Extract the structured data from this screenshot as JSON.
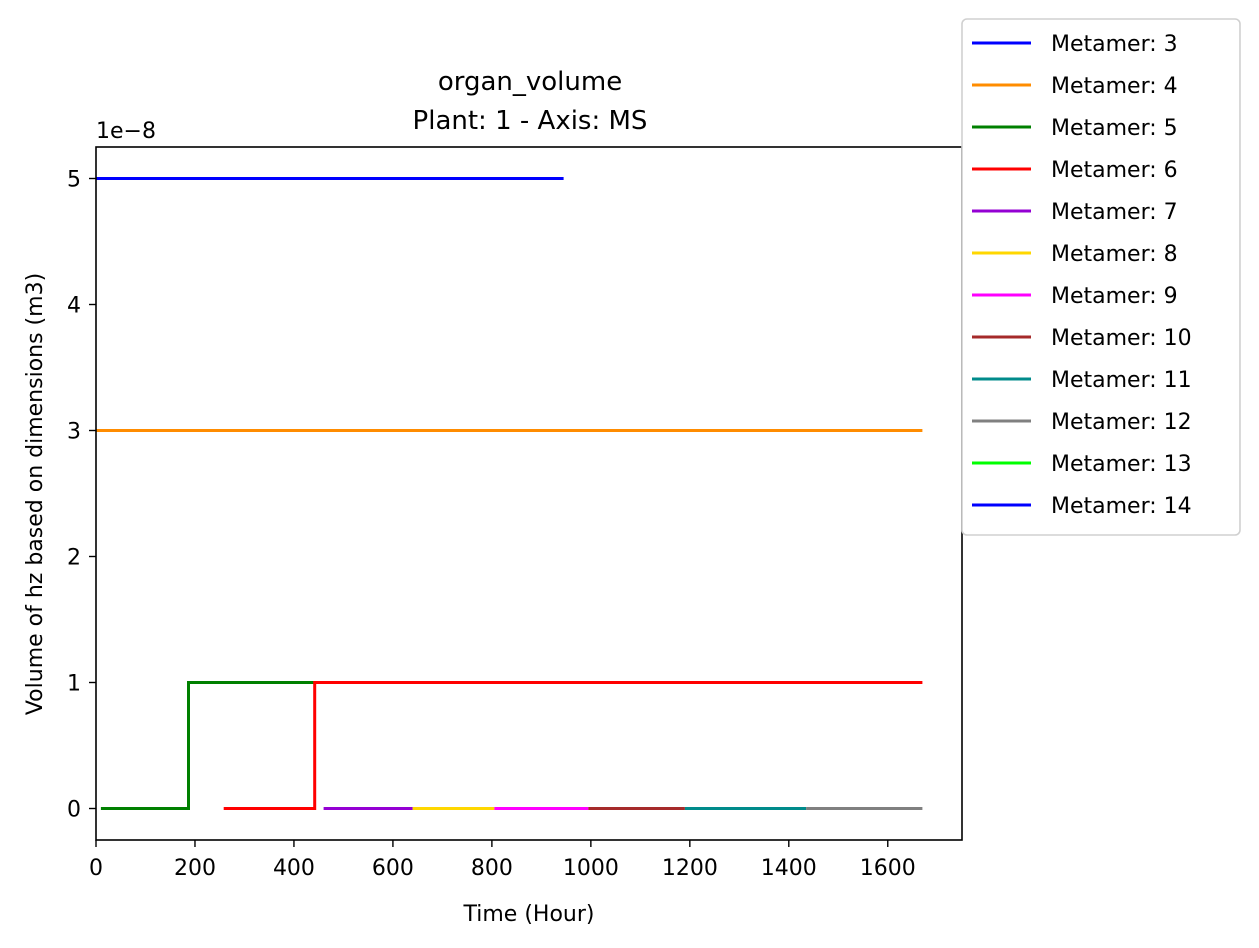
{
  "chart_data": {
    "type": "line",
    "title": "organ_volume",
    "subtitle": "Plant: 1 - Axis: MS",
    "xlabel": "Time (Hour)",
    "ylabel": "Volume of hz based on dimensions (m3)",
    "y_offset_label": "1e−8",
    "xlim": [
      0,
      1750
    ],
    "ylim": [
      -0.25,
      5.25
    ],
    "y_scale_factor": 1e-08,
    "x_ticks": [
      0,
      200,
      400,
      600,
      800,
      1000,
      1200,
      1400,
      1600
    ],
    "y_ticks": [
      0,
      1,
      2,
      3,
      4,
      5
    ],
    "grid": false,
    "legend_position": "outside top-right",
    "series": [
      {
        "name": "Metamer: 3",
        "color": "#0000ff",
        "points": [
          [
            0,
            5
          ],
          [
            945,
            5
          ]
        ]
      },
      {
        "name": "Metamer: 4",
        "color": "#ff8c00",
        "points": [
          [
            0,
            3
          ],
          [
            1670,
            3
          ]
        ]
      },
      {
        "name": "Metamer: 5",
        "color": "#008000",
        "points": [
          [
            10,
            0
          ],
          [
            187,
            0
          ],
          [
            187,
            1
          ],
          [
            445,
            1
          ]
        ]
      },
      {
        "name": "Metamer: 6",
        "color": "#ff0000",
        "points": [
          [
            258,
            0
          ],
          [
            442,
            0
          ],
          [
            442,
            1
          ],
          [
            1670,
            1
          ]
        ]
      },
      {
        "name": "Metamer: 7",
        "color": "#9400d3",
        "points": [
          [
            460,
            0
          ],
          [
            640,
            0
          ]
        ]
      },
      {
        "name": "Metamer: 8",
        "color": "#ffd700",
        "points": [
          [
            640,
            0
          ],
          [
            805,
            0
          ]
        ]
      },
      {
        "name": "Metamer: 9",
        "color": "#ff00ff",
        "points": [
          [
            805,
            0
          ],
          [
            995,
            0
          ]
        ]
      },
      {
        "name": "Metamer: 10",
        "color": "#a52a2a",
        "points": [
          [
            995,
            0
          ],
          [
            1190,
            0
          ]
        ]
      },
      {
        "name": "Metamer: 11",
        "color": "#008b8b",
        "points": [
          [
            1190,
            0
          ],
          [
            1435,
            0
          ]
        ]
      },
      {
        "name": "Metamer: 12",
        "color": "#808080",
        "points": [
          [
            1435,
            0
          ],
          [
            1670,
            0
          ]
        ]
      },
      {
        "name": "Metamer: 13",
        "color": "#00ff00",
        "points": []
      },
      {
        "name": "Metamer: 14",
        "color": "#0000ff",
        "points": []
      }
    ]
  }
}
